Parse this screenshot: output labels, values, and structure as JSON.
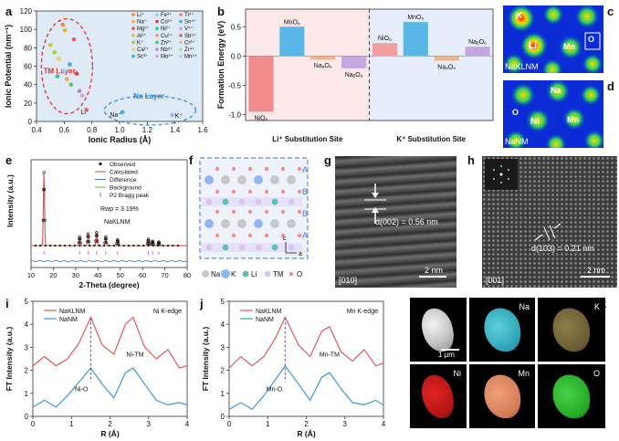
{
  "panel_labels": {
    "a": "a",
    "b": "b",
    "c": "c",
    "d": "d",
    "e": "e",
    "f": "f",
    "g": "g",
    "h": "h",
    "i": "i",
    "j": "j",
    "k": "k"
  },
  "colors": {
    "red": "#e05a5a",
    "blue": "#3b9ad8",
    "bar_red": "#f08c8c",
    "bar_blue": "#5bb6e8",
    "bar_orange": "#f2b48a",
    "bar_purple": "#c6a8e0",
    "bg_blue": "#dfeaf7",
    "cation_na": "#c8c8c8",
    "cation_k": "#8fb9ec",
    "cation_li": "#59c2b4",
    "cation_tm": "#d6c7ef",
    "anion_o": "#f28f8f"
  },
  "a": {
    "legend": [
      "Li⁺",
      "Na⁺",
      "Mg²⁺",
      "Al³⁺",
      "K⁺",
      "Ca²⁺",
      "Sc³⁺",
      "Fe³⁺",
      "Co³⁺",
      "Ni²⁺",
      "Cu²⁺",
      "Zn²⁺",
      "Nb⁵⁺",
      "Mo⁶⁺",
      "Ti⁴⁺",
      "Sn⁴⁺",
      "V⁵⁺",
      "Sb⁵⁺",
      "Cr³⁺",
      "Zr⁴⁺",
      "Mn⁴⁺"
    ],
    "tm_label": "TM Layer",
    "na_label": "Na Layer",
    "pt_li": "Li⁺",
    "pt_na": "Na⁺",
    "pt_k": "K⁺"
  },
  "chart_data": [
    {
      "type": "scatter",
      "xlabel": "Ionic Radius (Å)",
      "ylabel": "Ionic Potential (nm⁻¹)",
      "xlim": [
        0.4,
        1.6
      ],
      "ylim": [
        0,
        120
      ],
      "x_ticks": [
        "0.4",
        "0.6",
        "0.8",
        "1.0",
        "1.2",
        "1.4",
        "1.6"
      ],
      "y_ticks": [
        "0",
        "20",
        "40",
        "60",
        "80",
        "100",
        "120"
      ],
      "points": [
        {
          "x": 0.59,
          "y": 105
        },
        {
          "x": 0.605,
          "y": 99
        },
        {
          "x": 0.67,
          "y": 89
        },
        {
          "x": 0.5,
          "y": 83
        },
        {
          "x": 0.53,
          "y": 75
        },
        {
          "x": 0.56,
          "y": 68
        },
        {
          "x": 0.64,
          "y": 62
        },
        {
          "x": 0.6,
          "y": 55
        },
        {
          "x": 0.69,
          "y": 52
        },
        {
          "x": 0.55,
          "y": 49
        },
        {
          "x": 0.62,
          "y": 46
        },
        {
          "x": 0.65,
          "y": 40
        },
        {
          "x": 0.71,
          "y": 33
        },
        {
          "x": 0.73,
          "y": 28
        },
        {
          "x": 0.76,
          "y": 13
        },
        {
          "x": 1.02,
          "y": 10
        },
        {
          "x": 1.38,
          "y": 7
        }
      ]
    },
    {
      "type": "bar",
      "ylabel": "Formation Energy (eV)",
      "ylim": [
        -1.1,
        0.8
      ],
      "y_ticks": [
        "-1.0",
        "-0.5",
        "0.0",
        "0.5"
      ],
      "group_labels": [
        "Li⁺ Substitution Site",
        "K⁺ Substitution Site"
      ],
      "series": [
        {
          "category": "NiO₆",
          "value": -0.95,
          "group": 0
        },
        {
          "category": "MnO₆",
          "value": 0.5,
          "group": 0
        },
        {
          "category": "NaₐO₆",
          "value": -0.06,
          "group": 0
        },
        {
          "category": "NaᵦO₆",
          "value": -0.21,
          "group": 0
        },
        {
          "category": "NiO₆",
          "value": 0.22,
          "group": 1
        },
        {
          "category": "MnO₆",
          "value": 0.58,
          "group": 1
        },
        {
          "category": "NaₐO₆",
          "value": -0.08,
          "group": 1
        },
        {
          "category": "NaᵦO₆",
          "value": 0.16,
          "group": 1
        }
      ]
    },
    {
      "type": "line",
      "xlabel": "2-Theta (degree)",
      "ylabel": "Intensity (a.u.)",
      "xlim": [
        10,
        80
      ],
      "x_ticks": [
        "10",
        "20",
        "30",
        "40",
        "50",
        "60",
        "70",
        "80"
      ],
      "legend": [
        "Observed",
        "Calculated",
        "Difference",
        "Background",
        "P2 Bragg peak"
      ],
      "annotations": [
        "Rwp = 3.19%",
        "NaKLNM"
      ],
      "peaks": [
        {
          "x": 15.8,
          "h": 1.0
        },
        {
          "x": 31.8,
          "h": 0.12
        },
        {
          "x": 35.6,
          "h": 0.16
        },
        {
          "x": 39.4,
          "h": 0.18
        },
        {
          "x": 43.5,
          "h": 0.12
        },
        {
          "x": 48.8,
          "h": 0.08
        },
        {
          "x": 62.6,
          "h": 0.09
        },
        {
          "x": 64.5,
          "h": 0.06
        },
        {
          "x": 67.3,
          "h": 0.05
        }
      ]
    },
    {
      "type": "line",
      "xlabel": "R (Å)",
      "ylabel": "FT Intensity (a.u.)",
      "xlim": [
        0,
        4
      ],
      "ylim": [
        0,
        5
      ],
      "x_ticks": [
        "0",
        "1",
        "2",
        "3",
        "4"
      ],
      "y_ticks": [
        "0",
        "1",
        "2",
        "3",
        "4",
        "5"
      ],
      "title": "Ni K-edge",
      "annotations": [
        "Ni-O",
        "Ni-TM"
      ],
      "series": [
        {
          "name": "NaKLNM",
          "x": [
            0,
            0.3,
            0.6,
            0.9,
            1.2,
            1.5,
            1.8,
            2.1,
            2.4,
            2.6,
            2.9,
            3.2,
            3.5,
            3.8,
            4.0
          ],
          "y": [
            2.2,
            2.6,
            2.2,
            2.5,
            3.2,
            4.3,
            3.1,
            2.7,
            4.0,
            4.3,
            3.0,
            2.5,
            2.9,
            2.1,
            2.2
          ]
        },
        {
          "name": "NaNM",
          "x": [
            0,
            0.3,
            0.6,
            0.9,
            1.2,
            1.5,
            1.8,
            2.1,
            2.4,
            2.6,
            2.9,
            3.2,
            3.5,
            3.8,
            4.0
          ],
          "y": [
            0.4,
            0.7,
            0.4,
            0.9,
            1.5,
            2.1,
            1.4,
            0.8,
            1.9,
            2.1,
            1.4,
            0.7,
            0.5,
            0.6,
            0.5
          ]
        }
      ]
    },
    {
      "type": "line",
      "xlabel": "R (Å)",
      "ylabel": "FT Intensity (a.u.)",
      "xlim": [
        0,
        4
      ],
      "ylim": [
        0,
        5
      ],
      "x_ticks": [
        "0",
        "1",
        "2",
        "3",
        "4"
      ],
      "y_ticks": [
        "0",
        "1",
        "2",
        "3",
        "4",
        "5"
      ],
      "title": "Mn K-edge",
      "annotations": [
        "Mn-O",
        "Mn-TM"
      ],
      "series": [
        {
          "name": "NaKLNM",
          "x": [
            0,
            0.3,
            0.6,
            0.9,
            1.2,
            1.45,
            1.8,
            2.1,
            2.4,
            2.6,
            2.9,
            3.2,
            3.5,
            3.8,
            4.0
          ],
          "y": [
            2.1,
            2.6,
            2.2,
            2.6,
            3.4,
            4.3,
            3.1,
            2.6,
            3.7,
            3.9,
            2.8,
            2.4,
            2.9,
            2.2,
            2.3
          ]
        },
        {
          "name": "NaNM",
          "x": [
            0,
            0.3,
            0.6,
            0.9,
            1.2,
            1.45,
            1.8,
            2.1,
            2.4,
            2.6,
            2.9,
            3.2,
            3.5,
            3.8,
            4.0
          ],
          "y": [
            0.3,
            0.6,
            0.3,
            0.9,
            1.6,
            2.2,
            1.4,
            0.7,
            1.7,
            1.9,
            1.2,
            0.6,
            0.5,
            0.7,
            0.5
          ]
        }
      ]
    }
  ],
  "c": {
    "lbl_k": "K",
    "lbl_li": "Li",
    "lbl_mn": "Mn",
    "lbl_o": "O",
    "tag": "NaKLNM"
  },
  "d": {
    "lbl_na": "Na",
    "lbl_ni": "Ni",
    "lbl_mn": "Mn",
    "lbl_o": "O",
    "tag": "NaNM"
  },
  "f": {
    "layer_labels": [
      "A",
      "B",
      "B",
      "A"
    ],
    "axis_c": "c",
    "axis_a": "a",
    "legend": [
      "Na",
      "K",
      "Li",
      "TM",
      "O"
    ]
  },
  "g": {
    "measure": "d(002) = 0.56 nm",
    "scale": "2 nm",
    "zone": "[010]"
  },
  "h": {
    "measure": "d(103) = 0.21 nm",
    "scale": "2 nm",
    "zone": "[001]"
  },
  "k": {
    "labels": [
      "Na",
      "K",
      "Ni",
      "Mn",
      "O"
    ],
    "scale": "1 μm"
  }
}
